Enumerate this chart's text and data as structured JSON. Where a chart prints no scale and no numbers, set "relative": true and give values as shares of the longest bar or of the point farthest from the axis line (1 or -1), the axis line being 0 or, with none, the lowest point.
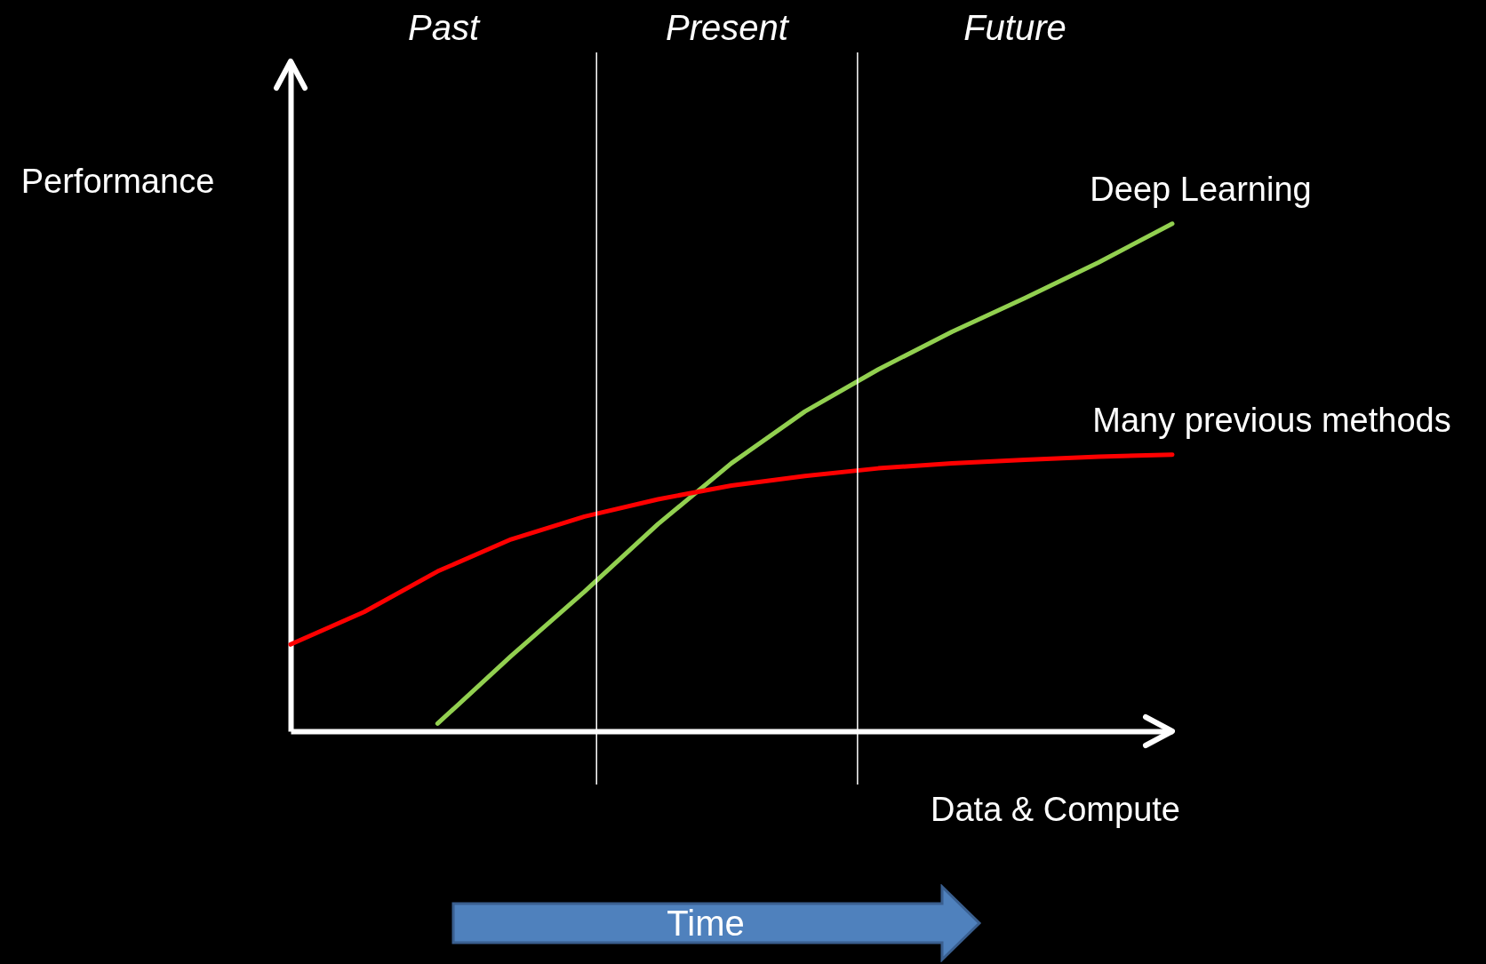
{
  "chart_data": {
    "type": "line",
    "relative": true,
    "xlabel": "Data & Compute",
    "ylabel": "Performance",
    "categories": [
      null,
      null,
      null,
      null,
      null,
      null,
      null,
      null,
      null,
      null,
      null,
      null,
      null
    ],
    "series": [
      {
        "name": "Deep Learning",
        "color": "#92d050",
        "values": [
          null,
          null,
          0.015,
          0.148,
          0.275,
          0.408,
          0.528,
          0.63,
          0.713,
          0.787,
          0.854,
          0.924,
          1.0
        ]
      },
      {
        "name": "Many previous methods",
        "color": "#ff0000",
        "values": [
          0.171,
          0.235,
          0.315,
          0.378,
          0.423,
          0.457,
          0.484,
          0.503,
          0.518,
          0.528,
          0.535,
          0.541,
          0.545
        ]
      }
    ],
    "annotations": [
      "Past",
      "Present",
      "Future",
      "Time"
    ],
    "grid": false,
    "legend": false,
    "marker": "none",
    "line_style": "solid"
  }
}
